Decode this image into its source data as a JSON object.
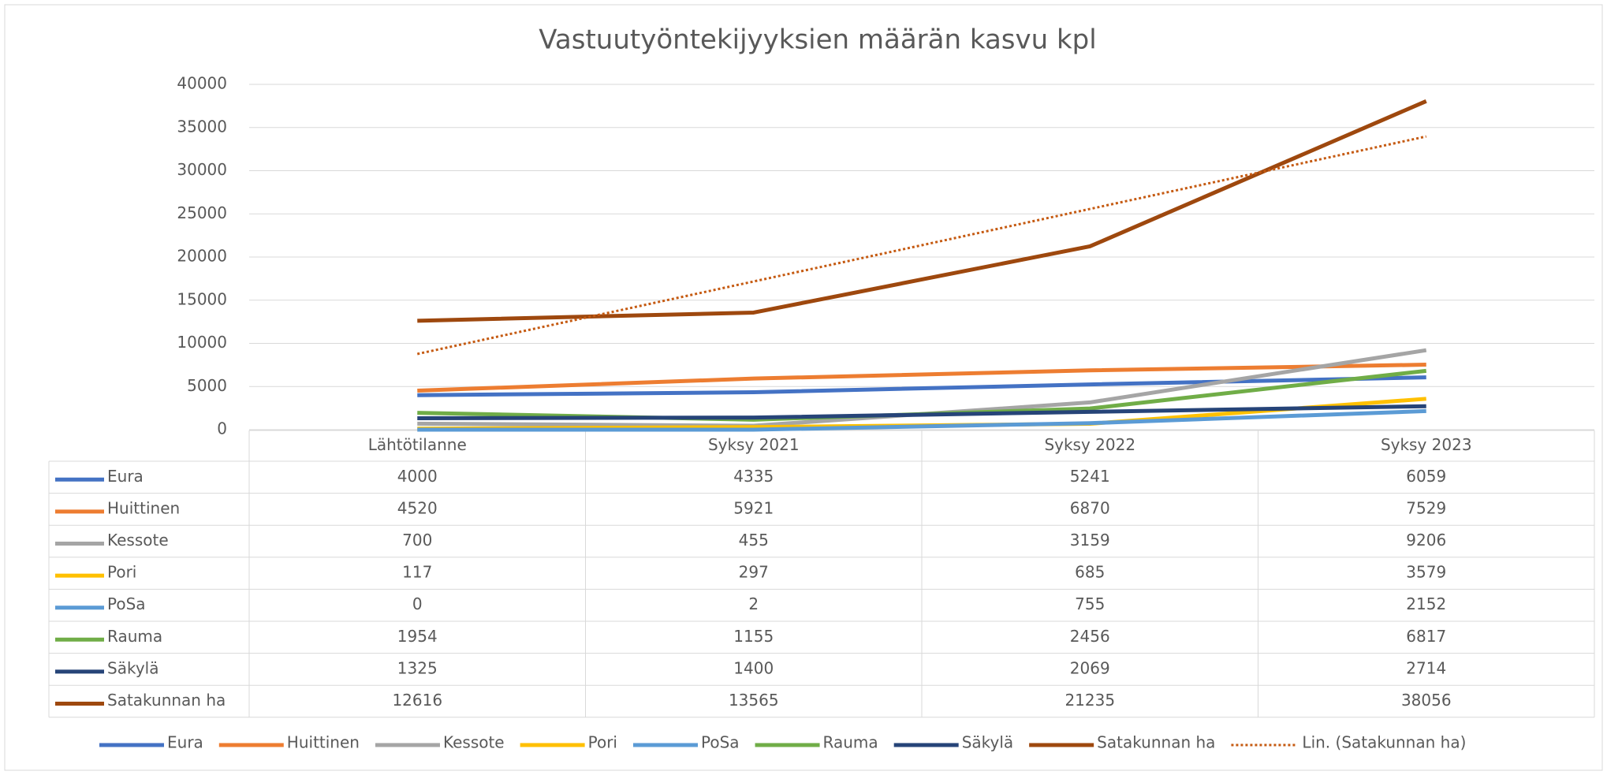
{
  "chart_data": {
    "type": "line",
    "title": "Vastuutyöntekijyyksien määrän kasvu kpl",
    "categories": [
      "Lähtötilanne",
      "Syksy 2021",
      "Syksy 2022",
      "Syksy 2023"
    ],
    "series": [
      {
        "name": "Eura",
        "color": "#4472c4",
        "values": [
          4000,
          4335,
          5241,
          6059
        ]
      },
      {
        "name": "Huittinen",
        "color": "#ed7d31",
        "values": [
          4520,
          5921,
          6870,
          7529
        ]
      },
      {
        "name": "Kessote",
        "color": "#a5a5a5",
        "values": [
          700,
          455,
          3159,
          9206
        ]
      },
      {
        "name": "Pori",
        "color": "#ffc000",
        "values": [
          117,
          297,
          685,
          3579
        ]
      },
      {
        "name": "PoSa",
        "color": "#5b9bd5",
        "values": [
          0,
          2,
          755,
          2152
        ]
      },
      {
        "name": "Rauma",
        "color": "#70ad47",
        "values": [
          1954,
          1155,
          2456,
          6817
        ]
      },
      {
        "name": "Säkylä",
        "color": "#264478",
        "values": [
          1325,
          1400,
          2069,
          2714
        ]
      },
      {
        "name": "Satakunnan ha",
        "color": "#9e480e",
        "values": [
          12616,
          13565,
          21235,
          38056
        ]
      }
    ],
    "trendline": {
      "name": "Lin. (Satakunnan ha)",
      "type": "linear",
      "color": "#c55a11"
    },
    "ylim": [
      0,
      40000
    ],
    "yticks": [
      0,
      5000,
      10000,
      15000,
      20000,
      25000,
      30000,
      35000,
      40000
    ],
    "grid": true,
    "data_table": true,
    "legend": "bottom"
  }
}
